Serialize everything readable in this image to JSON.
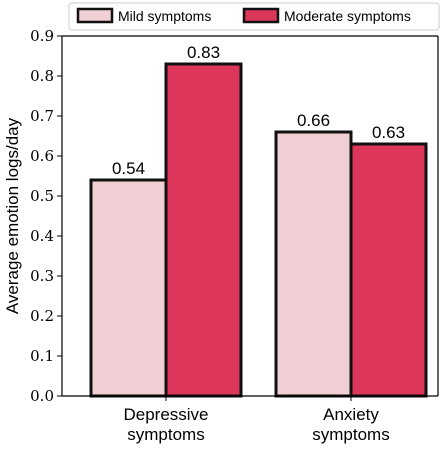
{
  "chart_data": {
    "type": "bar",
    "categories": [
      [
        "Depressive",
        "symptoms"
      ],
      [
        "Anxiety",
        "symptoms"
      ]
    ],
    "series": [
      {
        "name": "Mild symptoms",
        "values": [
          0.54,
          0.66
        ],
        "labels": [
          "0.54",
          "0.66"
        ],
        "color": "#f0d0d4"
      },
      {
        "name": "Moderate symptoms",
        "values": [
          0.83,
          0.63
        ],
        "labels": [
          "0.83",
          "0.63"
        ],
        "color": "#dc365a"
      }
    ],
    "ylabel": "Average emotion logs/day",
    "xlabel": "",
    "ylim": [
      0,
      0.9
    ],
    "yticks": [
      {
        "value": 0.0,
        "label": "0.0"
      },
      {
        "value": 0.1,
        "label": "0.1"
      },
      {
        "value": 0.2,
        "label": "0.2"
      },
      {
        "value": 0.3,
        "label": "0.3"
      },
      {
        "value": 0.4,
        "label": "0.4"
      },
      {
        "value": 0.5,
        "label": "0.5"
      },
      {
        "value": 0.6,
        "label": "0.6"
      },
      {
        "value": 0.7,
        "label": "0.7"
      },
      {
        "value": 0.8,
        "label": "0.8"
      },
      {
        "value": 0.9,
        "label": "0.9"
      }
    ],
    "grid": false,
    "legend": "top-center",
    "bar_edge_color": "#111111"
  }
}
